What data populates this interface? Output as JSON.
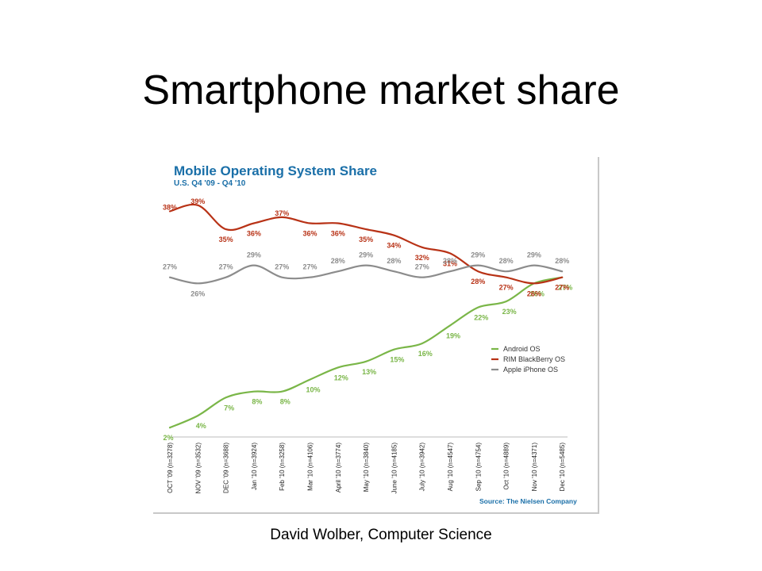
{
  "slide": {
    "title": "Smartphone market share",
    "footer": "David Wolber, Computer Science"
  },
  "colors": {
    "title_blue": "#1a6fa8",
    "android": "#7ab648",
    "blackberry": "#b83216",
    "iphone": "#8c8c8c",
    "source_blue": "#1a6fa8"
  },
  "chart_data": {
    "type": "line",
    "title": "Mobile Operating System Share",
    "subtitle": "U.S. Q4 '09 - Q4 '10",
    "source": "Source: The Nielsen Company",
    "legend_position": "right-middle",
    "grid": false,
    "ylim": [
      0,
      40
    ],
    "categories": [
      "OCT '09 (n=3278)",
      "NOV '09 (n=3532)",
      "DEC '09 (n=3688)",
      "Jan '10 (n=3924)",
      "Feb '10 (n=3258)",
      "Mar '10 (n=4106)",
      "April '10 (n=3774)",
      "May '10 (n=3840)",
      "June '10 (n=4185)",
      "July '10 (n=3942)",
      "Aug '10 (n=4547)",
      "Sep '10 (n=4754)",
      "Oct '10 (n=4889)",
      "Nov '10 (n=4371)",
      "Dec '10 (n=5485)"
    ],
    "series": [
      {
        "name": "Android OS",
        "color_key": "android",
        "values": [
          2,
          4,
          7,
          8,
          8,
          10,
          12,
          13,
          15,
          16,
          19,
          22,
          23,
          26,
          27
        ]
      },
      {
        "name": "RIM BlackBerry OS",
        "color_key": "blackberry",
        "values": [
          38,
          39,
          35,
          36,
          37,
          36,
          36,
          35,
          34,
          32,
          31,
          28,
          27,
          26,
          27
        ]
      },
      {
        "name": "Apple iPhone OS",
        "color_key": "iphone",
        "values": [
          27,
          26,
          27,
          29,
          27,
          27,
          28,
          29,
          28,
          27,
          28,
          29,
          28,
          29,
          28
        ]
      }
    ]
  }
}
